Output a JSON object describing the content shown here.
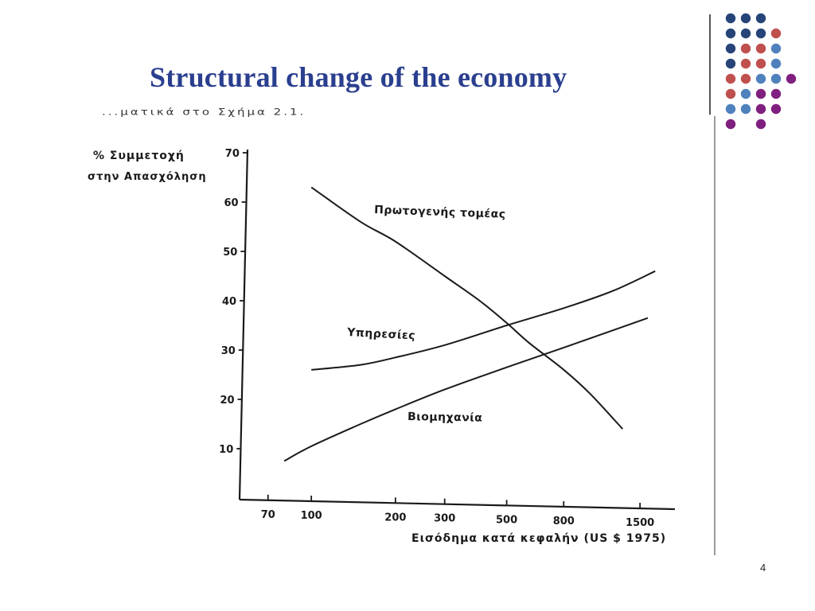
{
  "slide": {
    "title": "Structural change of the economy",
    "page_number": "4",
    "caption_fragment": "...ματικά στο Σχήμα 2.1.",
    "dot_colors": [
      "#264478",
      "#c0504d",
      "#4f81bd",
      "#7f1f7f"
    ]
  },
  "chart_data": {
    "type": "line",
    "xscale": "log",
    "xlim": [
      55,
      2000
    ],
    "ylim": [
      0,
      70
    ],
    "xticks": [
      70,
      100,
      200,
      300,
      500,
      800,
      1500
    ],
    "yticks": [
      10,
      20,
      30,
      40,
      50,
      60,
      70
    ],
    "ylabel_line1": "% Συμμετοχή",
    "ylabel_line2": "στην Απασχόληση",
    "xlabel": "Εισόδημα κατά κεφαλήν (US $ 1975)",
    "series": [
      {
        "name": "Πρωτογενής τομέας",
        "x": [
          100,
          150,
          200,
          300,
          400,
          500,
          600,
          800,
          1000,
          1300
        ],
        "y": [
          63,
          56,
          52,
          45,
          40,
          35.5,
          31.5,
          26,
          21,
          14
        ]
      },
      {
        "name": "Υπηρεσίες",
        "x": [
          100,
          150,
          200,
          300,
          500,
          800,
          1200,
          1700
        ],
        "y": [
          26,
          27,
          28.5,
          31,
          35,
          38.5,
          42,
          46
        ]
      },
      {
        "name": "Βιομηχανία",
        "x": [
          80,
          100,
          150,
          200,
          300,
          500,
          800,
          1200,
          1600
        ],
        "y": [
          7.5,
          10.5,
          15,
          18,
          22,
          26.5,
          30.5,
          34,
          36.5
        ]
      }
    ]
  }
}
